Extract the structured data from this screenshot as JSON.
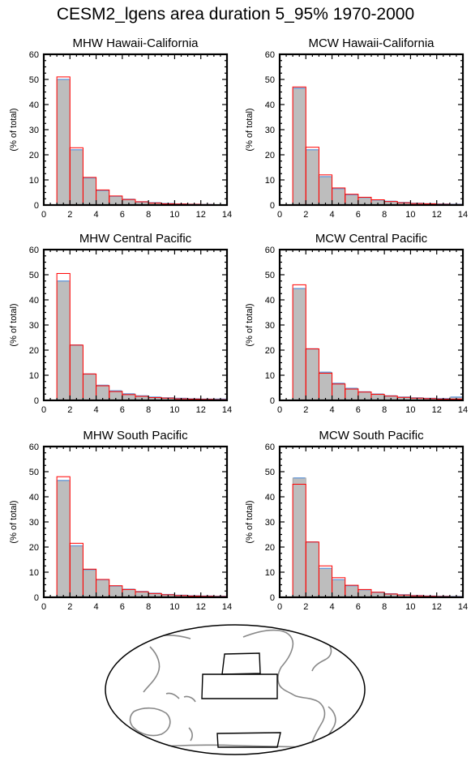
{
  "title": "CESM2_lgens area duration 5_95% 1970-2000",
  "chart_data": [
    {
      "type": "bar",
      "title": "MHW Hawaii-California",
      "ylabel": "(% of total)",
      "xlim": [
        0,
        14
      ],
      "ylim": [
        0,
        60
      ],
      "xticks": [
        0,
        2,
        4,
        6,
        8,
        10,
        12,
        14
      ],
      "yticks": [
        0,
        10,
        20,
        30,
        40,
        50,
        60
      ],
      "bin_edges": [
        1,
        2,
        3,
        4,
        5,
        6,
        7,
        8,
        9,
        10,
        11,
        12,
        13,
        14
      ],
      "series": [
        {
          "color": "#bdbdbd",
          "values": [
            50.0,
            22.0,
            10.8,
            5.8,
            3.5,
            2.3,
            1.3,
            0.9,
            0.6,
            0.4,
            0.3,
            0.2,
            0.1
          ]
        },
        {
          "color": "#ff0000",
          "values": [
            51.0,
            22.8,
            11.0,
            6.0,
            3.6,
            2.2,
            1.3,
            0.8,
            0.5,
            0.4,
            0.3,
            0.2,
            0.1
          ]
        }
      ]
    },
    {
      "type": "bar",
      "title": "MCW Hawaii-California",
      "ylabel": "(% of total)",
      "xlim": [
        0,
        14
      ],
      "ylim": [
        0,
        60
      ],
      "xticks": [
        0,
        2,
        4,
        6,
        8,
        10,
        12,
        14
      ],
      "yticks": [
        0,
        10,
        20,
        30,
        40,
        50,
        60
      ],
      "bin_edges": [
        1,
        2,
        3,
        4,
        5,
        6,
        7,
        8,
        9,
        10,
        11,
        12,
        13,
        14
      ],
      "series": [
        {
          "color": "#bdbdbd",
          "values": [
            46.5,
            22.0,
            11.3,
            6.5,
            4.1,
            3.0,
            2.0,
            1.5,
            1.0,
            0.7,
            0.5,
            0.4,
            0.3
          ]
        },
        {
          "color": "#ff0000",
          "values": [
            47.0,
            23.0,
            12.0,
            6.8,
            4.3,
            3.1,
            2.1,
            1.4,
            0.9,
            0.6,
            0.5,
            0.3,
            0.2
          ]
        }
      ]
    },
    {
      "type": "bar",
      "title": "MHW Central Pacific",
      "ylabel": "(% of total)",
      "xlim": [
        0,
        14
      ],
      "ylim": [
        0,
        60
      ],
      "xticks": [
        0,
        2,
        4,
        6,
        8,
        10,
        12,
        14
      ],
      "yticks": [
        0,
        10,
        20,
        30,
        40,
        50,
        60
      ],
      "bin_edges": [
        1,
        2,
        3,
        4,
        5,
        6,
        7,
        8,
        9,
        10,
        11,
        12,
        13,
        14
      ],
      "series": [
        {
          "color": "#bdbdbd",
          "values": [
            47.5,
            22.0,
            10.5,
            6.0,
            3.8,
            2.6,
            1.8,
            1.3,
            1.0,
            0.8,
            0.6,
            0.5,
            0.5
          ]
        },
        {
          "color": "#ff0000",
          "values": [
            50.5,
            22.0,
            10.5,
            5.8,
            3.5,
            2.3,
            1.6,
            1.1,
            0.9,
            0.6,
            0.5,
            0.4,
            0.3
          ]
        }
      ]
    },
    {
      "type": "bar",
      "title": "MCW Central Pacific",
      "ylabel": "(% of total)",
      "xlim": [
        0,
        14
      ],
      "ylim": [
        0,
        60
      ],
      "xticks": [
        0,
        2,
        4,
        6,
        8,
        10,
        12,
        14
      ],
      "yticks": [
        0,
        10,
        20,
        30,
        40,
        50,
        60
      ],
      "bin_edges": [
        1,
        2,
        3,
        4,
        5,
        6,
        7,
        8,
        9,
        10,
        11,
        12,
        13,
        14
      ],
      "series": [
        {
          "color": "#bdbdbd",
          "values": [
            44.5,
            20.5,
            11.2,
            6.8,
            4.8,
            3.4,
            2.5,
            1.8,
            1.3,
            1.0,
            0.8,
            0.7,
            1.3
          ]
        },
        {
          "color": "#ff0000",
          "values": [
            46.0,
            20.5,
            10.8,
            6.5,
            4.5,
            3.3,
            2.4,
            1.7,
            1.2,
            0.9,
            0.7,
            0.5,
            0.5
          ]
        }
      ]
    },
    {
      "type": "bar",
      "title": "MHW South Pacific",
      "ylabel": "(% of total)",
      "xlim": [
        0,
        14
      ],
      "ylim": [
        0,
        60
      ],
      "xticks": [
        0,
        2,
        4,
        6,
        8,
        10,
        12,
        14
      ],
      "yticks": [
        0,
        10,
        20,
        30,
        40,
        50,
        60
      ],
      "bin_edges": [
        1,
        2,
        3,
        4,
        5,
        6,
        7,
        8,
        9,
        10,
        11,
        12,
        13,
        14
      ],
      "series": [
        {
          "color": "#bdbdbd",
          "values": [
            46.5,
            20.5,
            11.0,
            7.0,
            4.5,
            3.2,
            2.3,
            1.6,
            1.1,
            0.8,
            0.6,
            0.5,
            0.4
          ]
        },
        {
          "color": "#ff0000",
          "values": [
            48.0,
            21.5,
            11.2,
            7.1,
            4.6,
            3.1,
            2.2,
            1.5,
            1.0,
            0.7,
            0.5,
            0.4,
            0.3
          ]
        }
      ]
    },
    {
      "type": "bar",
      "title": "MCW South Pacific",
      "ylabel": "(% of total)",
      "xlim": [
        0,
        14
      ],
      "ylim": [
        0,
        60
      ],
      "xticks": [
        0,
        2,
        4,
        6,
        8,
        10,
        12,
        14
      ],
      "yticks": [
        0,
        10,
        20,
        30,
        40,
        50,
        60
      ],
      "bin_edges": [
        1,
        2,
        3,
        4,
        5,
        6,
        7,
        8,
        9,
        10,
        11,
        12,
        13,
        14
      ],
      "series": [
        {
          "color": "#bdbdbd",
          "values": [
            47.5,
            22.0,
            11.5,
            7.0,
            4.6,
            3.0,
            2.0,
            1.4,
            1.0,
            0.7,
            0.5,
            0.4,
            0.3
          ]
        },
        {
          "color": "#ff0000",
          "values": [
            45.0,
            22.0,
            12.5,
            7.8,
            4.8,
            3.1,
            2.0,
            1.3,
            0.9,
            0.6,
            0.4,
            0.3,
            0.2
          ]
        }
      ]
    }
  ],
  "map": {
    "land_color": "#888888",
    "box_color": "#000000"
  }
}
